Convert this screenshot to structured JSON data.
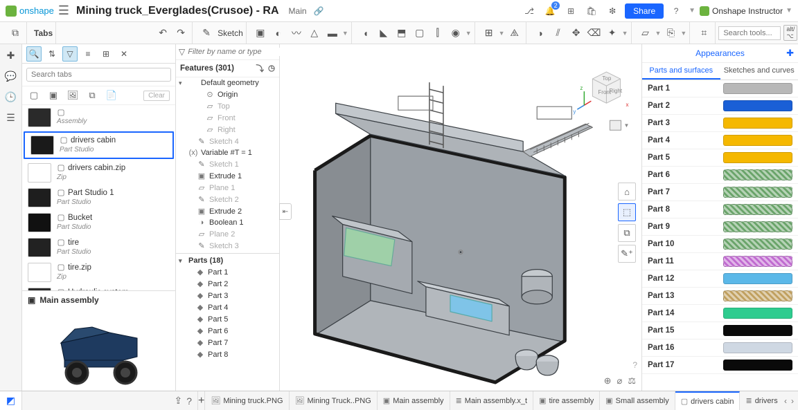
{
  "header": {
    "logo_text": "onshape",
    "doc_title": "Mining truck_Everglades(Crusoe) - RA",
    "branch": "Main",
    "notification_count": "2",
    "share_label": "Share",
    "user_label": "Onshape Instructor",
    "search_tools_placeholder": "Search tools...",
    "shortcut1": "alt/⌥",
    "shortcut2": "c"
  },
  "toolbar": {
    "sketch_label": "Sketch"
  },
  "tabs_sidebar": {
    "title": "Tabs",
    "search_placeholder": "Search tabs",
    "clear_label": "Clear",
    "items": [
      {
        "name": "",
        "kind": "Assembly",
        "selected": false,
        "thumb_color": "#2a2a2a"
      },
      {
        "name": "drivers cabin",
        "kind": "Part Studio",
        "selected": true,
        "thumb_color": "#1a1a1a"
      },
      {
        "name": "drivers cabin.zip",
        "kind": "Zip",
        "selected": false,
        "thumb_color": "#ffffff"
      },
      {
        "name": "Part Studio 1",
        "kind": "Part Studio",
        "selected": false,
        "thumb_color": "#1e1e1e"
      },
      {
        "name": "Bucket",
        "kind": "Part Studio",
        "selected": false,
        "thumb_color": "#111111"
      },
      {
        "name": "tire",
        "kind": "Part Studio",
        "selected": false,
        "thumb_color": "#222222"
      },
      {
        "name": "tire.zip",
        "kind": "Zip",
        "selected": false,
        "thumb_color": "#ffffff"
      },
      {
        "name": "Hydraulic system",
        "kind": "Part Studio",
        "selected": false,
        "thumb_color": "#2a2a2a"
      }
    ],
    "assembly_title": "Main assembly"
  },
  "features": {
    "filter_placeholder": "Filter by name or type",
    "header": "Features (301)",
    "tree": [
      {
        "label": "Default geometry",
        "indent": 0,
        "caret": "▾",
        "dim": false,
        "icon": ""
      },
      {
        "label": "Origin",
        "indent": 2,
        "icon": "⊙",
        "dim": false
      },
      {
        "label": "Top",
        "indent": 2,
        "icon": "▱",
        "dim": true
      },
      {
        "label": "Front",
        "indent": 2,
        "icon": "▱",
        "dim": true
      },
      {
        "label": "Right",
        "indent": 2,
        "icon": "▱",
        "dim": true
      },
      {
        "label": "Sketch 4",
        "indent": 1,
        "icon": "✎",
        "dim": true
      },
      {
        "label": "Variable #T = 1",
        "indent": 0,
        "icon": "(x)",
        "dim": false
      },
      {
        "label": "Sketch 1",
        "indent": 1,
        "icon": "✎",
        "dim": true
      },
      {
        "label": "Extrude 1",
        "indent": 1,
        "icon": "▣",
        "dim": false
      },
      {
        "label": "Plane 1",
        "indent": 1,
        "icon": "▱",
        "dim": true
      },
      {
        "label": "Sketch 2",
        "indent": 1,
        "icon": "✎",
        "dim": true
      },
      {
        "label": "Extrude 2",
        "indent": 1,
        "icon": "▣",
        "dim": false
      },
      {
        "label": "Boolean 1",
        "indent": 1,
        "icon": "◑",
        "dim": false
      },
      {
        "label": "Plane 2",
        "indent": 1,
        "icon": "▱",
        "dim": true
      },
      {
        "label": "Sketch 3",
        "indent": 1,
        "icon": "✎",
        "dim": true
      }
    ],
    "parts_header": "Parts (18)",
    "parts": [
      "Part 1",
      "Part 2",
      "Part 3",
      "Part 4",
      "Part 5",
      "Part 6",
      "Part 7",
      "Part 8"
    ]
  },
  "appearances": {
    "title": "Appearances",
    "tab1": "Parts and surfaces",
    "tab2": "Sketches and curves",
    "rows": [
      {
        "label": "Part 1",
        "color": "#b8b8b8",
        "hatch": false
      },
      {
        "label": "Part 2",
        "color": "#1a5fd6",
        "hatch": false
      },
      {
        "label": "Part 3",
        "color": "#f5b800",
        "hatch": false
      },
      {
        "label": "Part 4",
        "color": "#f5b800",
        "hatch": false
      },
      {
        "label": "Part 5",
        "color": "#f5b800",
        "hatch": false
      },
      {
        "label": "Part 6",
        "color": "#6aa46a",
        "hatch": true
      },
      {
        "label": "Part 7",
        "color": "#6aa46a",
        "hatch": true
      },
      {
        "label": "Part 8",
        "color": "#6aa46a",
        "hatch": true
      },
      {
        "label": "Part 9",
        "color": "#6aa46a",
        "hatch": true
      },
      {
        "label": "Part 10",
        "color": "#6aa46a",
        "hatch": true
      },
      {
        "label": "Part 11",
        "color": "#c06ad0",
        "hatch": true
      },
      {
        "label": "Part 12",
        "color": "#5bb8e8",
        "hatch": false
      },
      {
        "label": "Part 13",
        "color": "#c0a060",
        "hatch": true
      },
      {
        "label": "Part 14",
        "color": "#2ecc8f",
        "hatch": false
      },
      {
        "label": "Part 15",
        "color": "#0a0a0a",
        "hatch": false
      },
      {
        "label": "Part 16",
        "color": "#cfd8e3",
        "hatch": false
      },
      {
        "label": "Part 17",
        "color": "#0a0a0a",
        "hatch": false
      }
    ]
  },
  "viewcube": {
    "front": "Front",
    "top": "Top",
    "right": "Right",
    "axis_x": "x",
    "axis_y": "y",
    "axis_z": "z"
  },
  "bottom_tabs": {
    "items": [
      {
        "label": "Mining truck.PNG",
        "icon": "🖼",
        "active": false
      },
      {
        "label": "Mining Truck..PNG",
        "icon": "🖼",
        "active": false
      },
      {
        "label": "Main assembly",
        "icon": "▣",
        "active": false
      },
      {
        "label": "Main assembly.x_t",
        "icon": "≣",
        "active": false
      },
      {
        "label": "tire assembly",
        "icon": "▣",
        "active": false
      },
      {
        "label": "Small assembly",
        "icon": "▣",
        "active": false
      },
      {
        "label": "drivers cabin",
        "icon": "▢",
        "active": true
      },
      {
        "label": "drivers cabi",
        "icon": "≣",
        "active": false
      }
    ]
  },
  "colors": {
    "brand_blue": "#1a66ff",
    "brand_green": "#6cb33f",
    "model_grey": "#9aa0a6",
    "model_dark": "#3a3f44"
  }
}
